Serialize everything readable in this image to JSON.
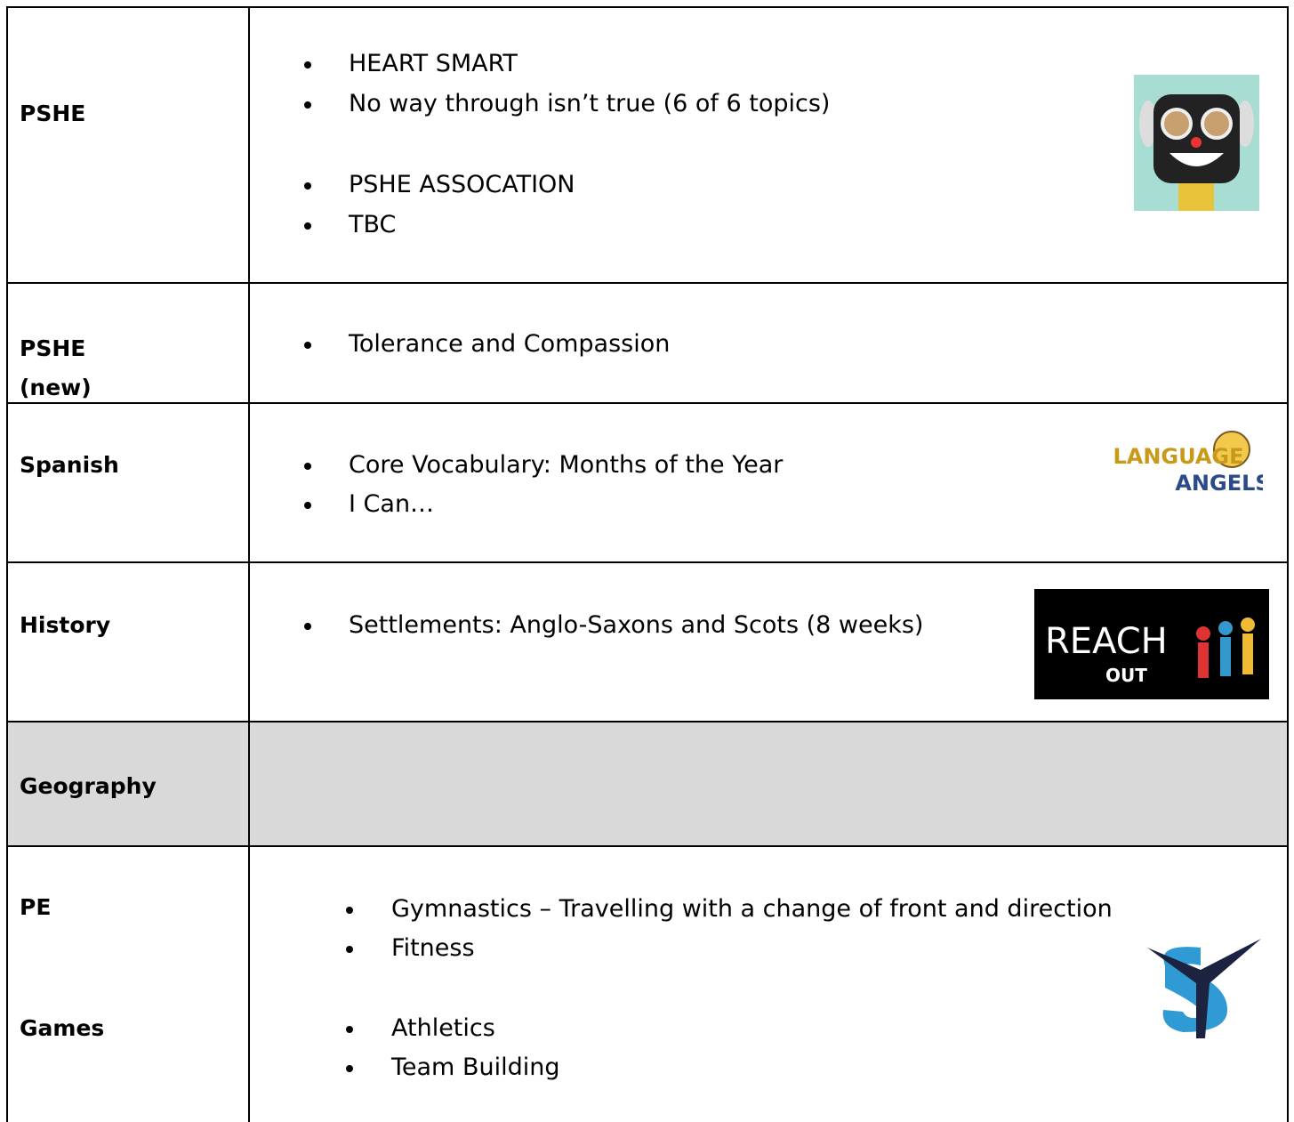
{
  "table": {
    "rows": [
      {
        "subject": [
          "PSHE"
        ],
        "items": [
          "HEART SMART",
          "No way through isn’t true (6 of 6 topics)",
          "PSHE ASSOCATION",
          "TBC"
        ]
      },
      {
        "subject": [
          "PSHE",
          "(new)"
        ],
        "items": [
          "Tolerance and Compassion"
        ]
      },
      {
        "subject": [
          "Spanish"
        ],
        "items": [
          "Core Vocabulary:  Months of the Year",
          "I Can…"
        ],
        "logo": [
          "LANGUAGE",
          "ANGELS"
        ]
      },
      {
        "subject": [
          "History"
        ],
        "items": [
          "Settlements: Anglo-Saxons and Scots (8 weeks)"
        ],
        "logo": [
          "REACH",
          "OUT"
        ]
      },
      {
        "subject": [
          "Geography"
        ],
        "items": []
      },
      {
        "subject": [
          "PE",
          "Games"
        ],
        "items": [
          "Gymnastics – Travelling with a change of front and direction",
          "Fitness",
          "Athletics",
          "Team Building"
        ]
      }
    ]
  }
}
